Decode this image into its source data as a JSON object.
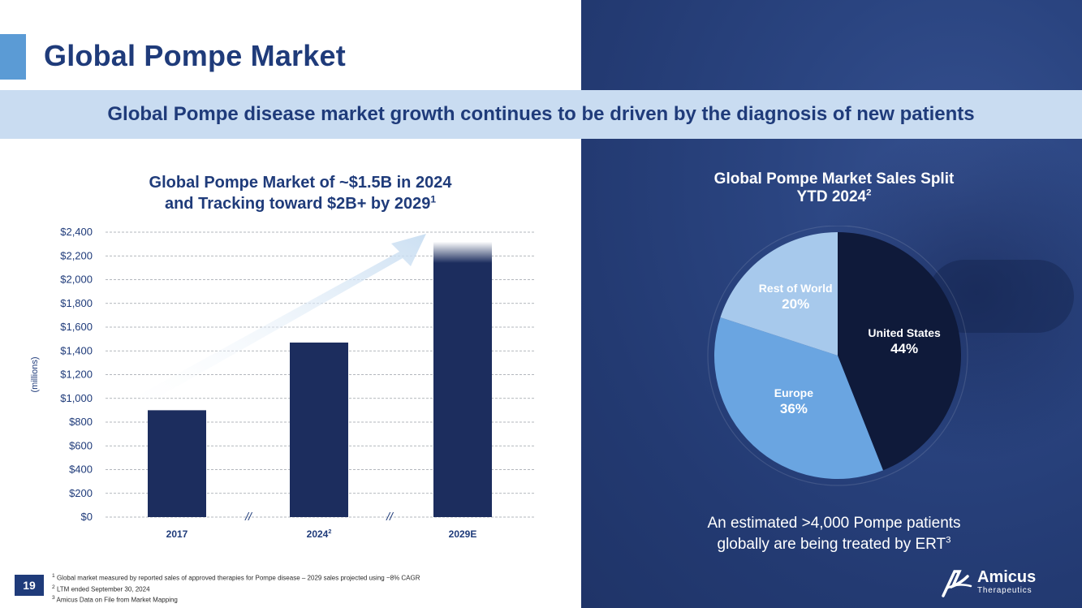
{
  "page": {
    "title": "Global Pompe Market",
    "subtitle": "Global Pompe disease market growth continues to be driven by the diagnosis of new patients",
    "slide_number": "19"
  },
  "bar_chart_header": {
    "line1": "Global Pompe Market of ~$1.5B in 2024",
    "line2_text": "and Tracking toward $2B+ by 2029",
    "line2_sup": "1",
    "x_label_2024_sup": "2",
    "axis_break": "//"
  },
  "pie_header": {
    "line1": "Global Pompe Market Sales Split",
    "line2_text": "YTD 2024",
    "line2_sup": "2"
  },
  "pie_note": {
    "line1": "An estimated >4,000 Pompe patients",
    "line2_text": "globally are being treated by ERT",
    "line2_sup": "3"
  },
  "chart_data": [
    {
      "type": "bar",
      "title": "Global Pompe Market of ~$1.5B in 2024 and Tracking toward $2B+ by 2029",
      "categories": [
        "2017",
        "2024",
        "2029E"
      ],
      "values": [
        900,
        1470,
        2200
      ],
      "ylabel": "(millions)",
      "xlabel": "",
      "ylim": [
        0,
        2400
      ],
      "yticks": [
        "$0",
        "$200",
        "$400",
        "$600",
        "$800",
        "$1,000",
        "$1,200",
        "$1,400",
        "$1,600",
        "$1,800",
        "$2,000",
        "$2,200",
        "$2,400"
      ],
      "grid": true,
      "annotations": [
        "arrow indicating growth from 2017 to 2029E"
      ]
    },
    {
      "type": "pie",
      "title": "Global Pompe Market Sales Split YTD 2024",
      "labels": [
        "United States",
        "Europe",
        "Rest of World"
      ],
      "values": [
        44,
        36,
        20
      ],
      "value_labels": [
        "44%",
        "36%",
        "20%"
      ]
    }
  ],
  "colors": {
    "navy": "#1f3b7a",
    "bar": "#1c2d5e",
    "us": "#0f1a3a",
    "europe": "#6aa5e1",
    "row": "#a7c9ec",
    "accent": "#5b9bd5",
    "band": "#c9dcf1",
    "grid": "#9aa0a8",
    "arrow": "#c6dcf1"
  },
  "footnotes": [
    {
      "num": "1",
      "text": "Global market measured by reported sales of approved therapies for Pompe disease – 2029 sales projected using ~8% CAGR"
    },
    {
      "num": "2",
      "text": "LTM ended September 30, 2024"
    },
    {
      "num": "3",
      "text": "Amicus Data on File from Market Mapping"
    }
  ],
  "logo": {
    "name": "Amicus",
    "sub": "Therapeutics"
  }
}
